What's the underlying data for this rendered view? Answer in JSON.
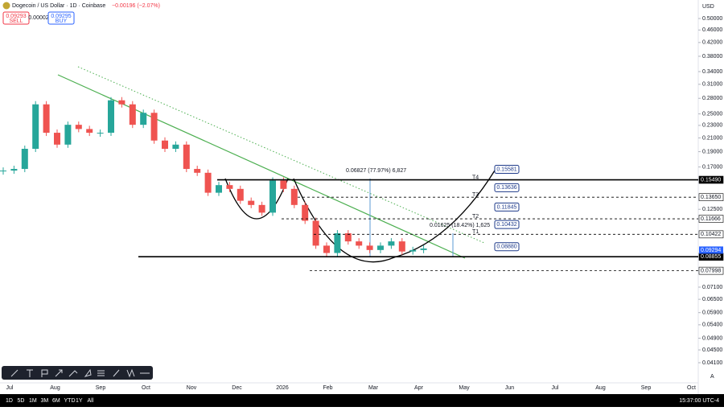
{
  "header": {
    "symbol": "Dogecoin / US Dollar · 1D · Coinbase",
    "change": "−0.00196 (−2.07%)",
    "sell_price": "0.09293",
    "sell": "SELL",
    "spread": "0.00002",
    "buy_price": "0.09295",
    "buy": "BUY",
    "currency": "USD"
  },
  "chart_data": {
    "type": "candlestick",
    "log": true,
    "values": [
      0.1656,
      0.1676,
      0.194,
      0.268,
      0.218,
      0.2,
      0.231,
      0.224,
      0.218,
      0.218,
      0.276,
      0.268,
      0.231,
      0.252,
      0.206,
      0.194,
      0.2,
      0.1676,
      0.163,
      0.141,
      0.149,
      0.145,
      0.133,
      0.129,
      0.122,
      0.154,
      0.145,
      0.129,
      0.115,
      0.096,
      0.091,
      0.105,
      0.099,
      0.096,
      0.093,
      0.096,
      0.099,
      0.092,
      0.093,
      0.094
    ],
    "up_color": "#26a69a",
    "down_color": "#ef5350",
    "ylim": [
      0.0344,
      0.572
    ],
    "yticks": [
      {
        "value": 0.5,
        "label": "0.50000"
      },
      {
        "value": 0.46,
        "label": "0.46000"
      },
      {
        "value": 0.42,
        "label": "0.42000"
      },
      {
        "value": 0.38,
        "label": "0.38000"
      },
      {
        "value": 0.34,
        "label": "0.34000"
      },
      {
        "value": 0.31,
        "label": "0.31000"
      },
      {
        "value": 0.28,
        "label": "0.28000"
      },
      {
        "value": 0.25,
        "label": "0.25000"
      },
      {
        "value": 0.23,
        "label": "0.23000"
      },
      {
        "value": 0.21,
        "label": "0.21000"
      },
      {
        "value": 0.19,
        "label": "0.19000"
      },
      {
        "value": 0.17,
        "label": "0.17000"
      },
      {
        "value": 0.125,
        "label": "0.12500"
      },
      {
        "value": 0.071,
        "label": "0.07100"
      },
      {
        "value": 0.065,
        "label": "0.06500"
      },
      {
        "value": 0.059,
        "label": "0.05900"
      },
      {
        "value": 0.054,
        "label": "0.05400"
      },
      {
        "value": 0.049,
        "label": "0.04900"
      },
      {
        "value": 0.045,
        "label": "0.04500"
      },
      {
        "value": 0.041,
        "label": "0.04100"
      }
    ],
    "x_labels": [
      "Jul",
      "Aug",
      "Sep",
      "Oct",
      "Nov",
      "Dec",
      "2026",
      "Feb",
      "Mar",
      "Apr",
      "May",
      "Jun",
      "Jul",
      "Aug",
      "Sep",
      "Oct"
    ],
    "levels": [
      {
        "value": 0.1549,
        "label": "0.15490"
      },
      {
        "value": 0.1365,
        "label": "0.13650"
      },
      {
        "value": 0.11666,
        "label": "0.11666"
      },
      {
        "value": 0.10422,
        "label": "0.10422"
      },
      {
        "value": 0.08855,
        "label": "0.08855"
      },
      {
        "value": 0.07998,
        "label": "0.07998"
      }
    ],
    "last_price": {
      "value": 0.09294,
      "label": "0.09294"
    },
    "targets": {
      "names": [
        "T4",
        "T3",
        "T2",
        "T1"
      ],
      "values": [
        0.15581,
        0.13636,
        0.11845,
        0.10432,
        0.0888
      ],
      "value_labels": [
        "0.15581",
        "0.13636",
        "0.11845",
        "0.10432",
        "0.08880"
      ]
    },
    "measures": [
      "0.06827 (77.97%) 6,827",
      "0.01625 (18.42%) 1,625"
    ]
  },
  "footer": {
    "ranges": [
      "1D",
      "5D",
      "1M",
      "3M",
      "6M",
      "YTD",
      "1Y",
      "All"
    ],
    "clock": "15:37:00 UTC-4",
    "auto": "A"
  }
}
